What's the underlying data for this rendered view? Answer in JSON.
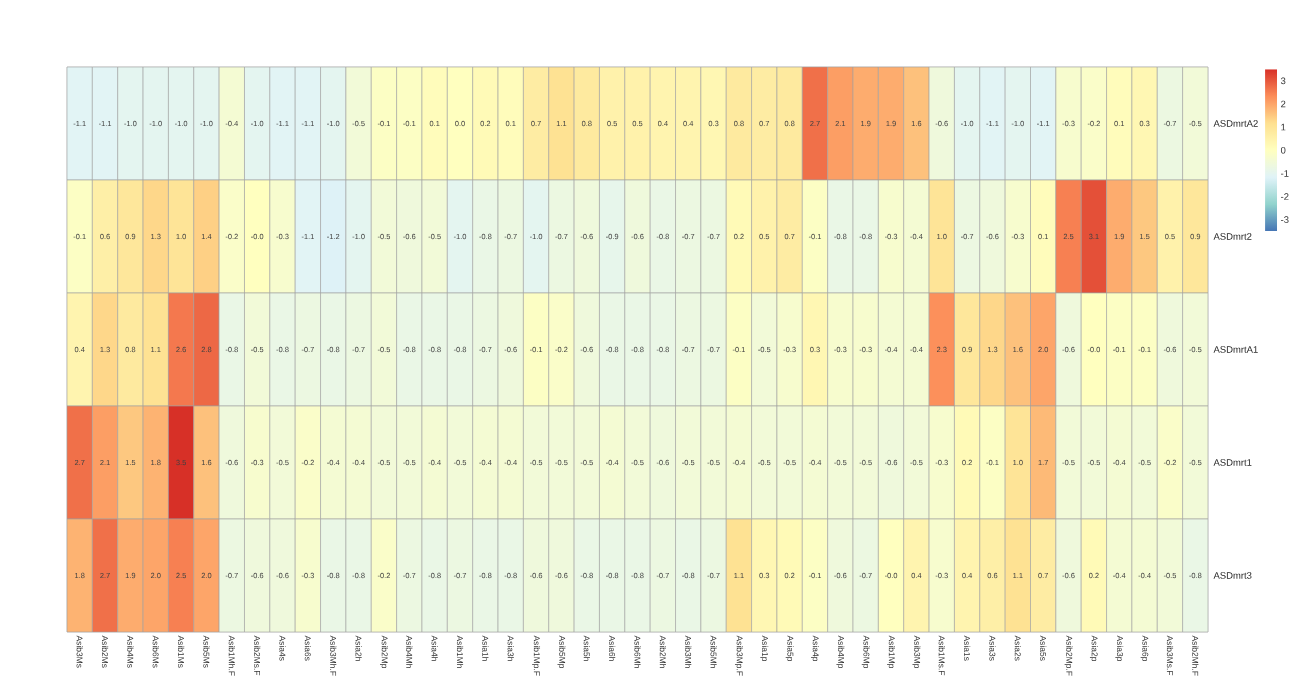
{
  "chart_data": {
    "type": "heatmap",
    "categories": [
      "Asib3Ms",
      "Asib2Ms",
      "Asib4Ms",
      "Asib6Ms",
      "Asib1Ms",
      "Asib5Ms",
      "Asib1Mh.F",
      "Asib2Ms.F",
      "Asia4s",
      "Asia6s",
      "Asib3Mh.F",
      "Asia2h",
      "Asib2Mp",
      "Asib4Mh",
      "Asia4h",
      "Asib1Mh",
      "Asia1h",
      "Asia3h",
      "Asib1Mp.F",
      "Asib5Mp",
      "Asia5h",
      "Asia6h",
      "Asib6Mh",
      "Asib2Mh",
      "Asib3Mh",
      "Asib5Mh",
      "Asib3Mp.F",
      "Asia1p",
      "Asia5p",
      "Asia4p",
      "Asib4Mp",
      "Asib6Mp",
      "Asib1Mp",
      "Asib3Mp",
      "Asib1Ms.F",
      "Asia1s",
      "Asia3s",
      "Asia2s",
      "Asia5s",
      "Asib2Mp.F",
      "Asia2p",
      "Asia3p",
      "Asia6p",
      "Asib3Ms.F",
      "Asib2Mh.F"
    ],
    "y_categories": [
      "ASDmrtA2",
      "ASDmrt2",
      "ASDmrtA1",
      "ASDmrt1",
      "ASDmrt3"
    ],
    "cells": [
      [
        -1.1,
        -1.1,
        -1.0,
        -1.0,
        -1.0,
        -1.0,
        -0.4,
        -1.0,
        -1.1,
        -1.1,
        -1.0,
        -0.5,
        -0.1,
        -0.1,
        0.1,
        0.0,
        0.2,
        0.1,
        0.7,
        1.1,
        0.8,
        0.5,
        0.5,
        0.4,
        0.4,
        0.3,
        0.8,
        0.7,
        0.8,
        2.7,
        2.1,
        1.9,
        1.9,
        1.6,
        -0.6,
        -1.0,
        -1.1,
        -1.0,
        -1.1,
        -0.3,
        -0.2,
        0.1,
        0.3,
        -0.7,
        -0.5
      ],
      [
        -0.1,
        0.6,
        0.9,
        1.3,
        1.0,
        1.4,
        -0.2,
        -0.0,
        -0.3,
        -1.1,
        -1.2,
        -1.0,
        -0.5,
        -0.6,
        -0.5,
        -1.0,
        -0.8,
        -0.7,
        -1.0,
        -0.7,
        -0.6,
        -0.9,
        -0.6,
        -0.8,
        -0.7,
        -0.7,
        0.2,
        0.5,
        0.7,
        -0.1,
        -0.8,
        -0.8,
        -0.3,
        -0.4,
        1.0,
        -0.7,
        -0.6,
        -0.3,
        0.1,
        2.5,
        3.1,
        1.9,
        1.5,
        0.5,
        0.9
      ],
      [
        0.4,
        1.3,
        0.8,
        1.1,
        2.6,
        2.8,
        -0.8,
        -0.5,
        -0.8,
        -0.7,
        -0.8,
        -0.7,
        -0.5,
        -0.8,
        -0.8,
        -0.8,
        -0.7,
        -0.6,
        -0.1,
        -0.2,
        -0.6,
        -0.8,
        -0.8,
        -0.8,
        -0.7,
        -0.7,
        -0.1,
        -0.5,
        -0.3,
        0.3,
        -0.3,
        -0.3,
        -0.4,
        -0.4,
        2.3,
        0.9,
        1.3,
        1.6,
        2.0,
        -0.6,
        -0.0,
        -0.1,
        -0.1,
        -0.6,
        -0.5
      ],
      [
        2.7,
        2.1,
        1.5,
        1.8,
        3.5,
        1.6,
        -0.6,
        -0.3,
        -0.5,
        -0.2,
        -0.4,
        -0.4,
        -0.5,
        -0.5,
        -0.4,
        -0.5,
        -0.4,
        -0.4,
        -0.5,
        -0.5,
        -0.5,
        -0.4,
        -0.5,
        -0.6,
        -0.5,
        -0.5,
        -0.4,
        -0.5,
        -0.5,
        -0.4,
        -0.5,
        -0.5,
        -0.6,
        -0.5,
        -0.3,
        0.2,
        -0.1,
        1.0,
        1.7,
        -0.5,
        -0.5,
        -0.4,
        -0.5,
        -0.2,
        -0.5
      ],
      [
        1.8,
        2.7,
        1.9,
        2.0,
        2.5,
        2.0,
        -0.7,
        -0.6,
        -0.6,
        -0.3,
        -0.8,
        -0.8,
        -0.2,
        -0.7,
        -0.8,
        -0.7,
        -0.8,
        -0.8,
        -0.6,
        -0.6,
        -0.8,
        -0.8,
        -0.8,
        -0.7,
        -0.8,
        -0.7,
        1.1,
        0.3,
        0.2,
        -0.1,
        -0.6,
        -0.7,
        -0.0,
        0.4,
        -0.3,
        0.4,
        0.6,
        1.1,
        0.7,
        -0.6,
        0.2,
        -0.4,
        -0.4,
        -0.5,
        -0.8
      ]
    ],
    "cell_labels": [
      [
        "-1.1",
        "-1.1",
        "-1.0",
        "-1.0",
        "-1.0",
        "-1.0",
        "-0.4",
        "-1.0",
        "-1.1",
        "-1.1",
        "-1.0",
        "-0.5",
        "-0.1",
        "-0.1",
        "0.1",
        "0.0",
        "0.2",
        "0.1",
        "0.7",
        "1.1",
        "0.8",
        "0.5",
        "0.5",
        "0.4",
        "0.4",
        "0.3",
        "0.8",
        "0.7",
        "0.8",
        "2.7",
        "2.1",
        "1.9",
        "1.9",
        "1.6",
        "-0.6",
        "-1.0",
        "-1.1",
        "-1.0",
        "-1.1",
        "-0.3",
        "-0.2",
        "0.1",
        "0.3",
        "-0.7",
        "-0.5"
      ],
      [
        "-0.1",
        "0.6",
        "0.9",
        "1.3",
        "1.0",
        "1.4",
        "-0.2",
        "-0.0",
        "-0.3",
        "-1.1",
        "-1.2",
        "-1.0",
        "-0.5",
        "-0.6",
        "-0.5",
        "-1.0",
        "-0.8",
        "-0.7",
        "-1.0",
        "-0.7",
        "-0.6",
        "-0.9",
        "-0.6",
        "-0.8",
        "-0.7",
        "-0.7",
        "0.2",
        "0.5",
        "0.7",
        "-0.1",
        "-0.8",
        "-0.8",
        "-0.3",
        "-0.4",
        "1.0",
        "-0.7",
        "-0.6",
        "-0.3",
        "0.1",
        "2.5",
        "3.1",
        "1.9",
        "1.5",
        "0.5",
        "0.9"
      ],
      [
        "0.4",
        "1.3",
        "0.8",
        "1.1",
        "2.6",
        "2.8",
        "-0.8",
        "-0.5",
        "-0.8",
        "-0.7",
        "-0.8",
        "-0.7",
        "-0.5",
        "-0.8",
        "-0.8",
        "-0.8",
        "-0.7",
        "-0.6",
        "-0.1",
        "-0.2",
        "-0.6",
        "-0.8",
        "-0.8",
        "-0.8",
        "-0.7",
        "-0.7",
        "-0.1",
        "-0.5",
        "-0.3",
        "0.3",
        "-0.3",
        "-0.3",
        "-0.4",
        "-0.4",
        "2.3",
        "0.9",
        "1.3",
        "1.6",
        "2.0",
        "-0.6",
        "-0.0",
        "-0.1",
        "-0.1",
        "-0.6",
        "-0.5"
      ],
      [
        "2.7",
        "2.1",
        "1.5",
        "1.8",
        "3.5",
        "1.6",
        "-0.6",
        "-0.3",
        "-0.5",
        "-0.2",
        "-0.4",
        "-0.4",
        "-0.5",
        "-0.5",
        "-0.4",
        "-0.5",
        "-0.4",
        "-0.4",
        "-0.5",
        "-0.5",
        "-0.5",
        "-0.4",
        "-0.5",
        "-0.6",
        "-0.5",
        "-0.5",
        "-0.4",
        "-0.5",
        "-0.5",
        "-0.4",
        "-0.5",
        "-0.5",
        "-0.6",
        "-0.5",
        "-0.3",
        "0.2",
        "-0.1",
        "1.0",
        "1.7",
        "-0.5",
        "-0.5",
        "-0.4",
        "-0.5",
        "-0.2",
        "-0.5"
      ],
      [
        "1.8",
        "2.7",
        "1.9",
        "2.0",
        "2.5",
        "2.0",
        "-0.7",
        "-0.6",
        "-0.6",
        "-0.3",
        "-0.8",
        "-0.8",
        "-0.2",
        "-0.7",
        "-0.8",
        "-0.7",
        "-0.8",
        "-0.8",
        "-0.6",
        "-0.6",
        "-0.8",
        "-0.8",
        "-0.8",
        "-0.7",
        "-0.8",
        "-0.7",
        "1.1",
        "0.3",
        "0.2",
        "-0.1",
        "-0.6",
        "-0.7",
        "-0.0",
        "0.4",
        "-0.3",
        "0.4",
        "0.6",
        "1.1",
        "0.7",
        "-0.6",
        "0.2",
        "-0.4",
        "-0.4",
        "-0.5",
        "-0.8"
      ]
    ],
    "clim": [
      -3.5,
      3.5
    ],
    "cticks": [
      -3,
      -2,
      -1,
      0,
      1,
      2,
      3
    ],
    "data_labels": true
  }
}
